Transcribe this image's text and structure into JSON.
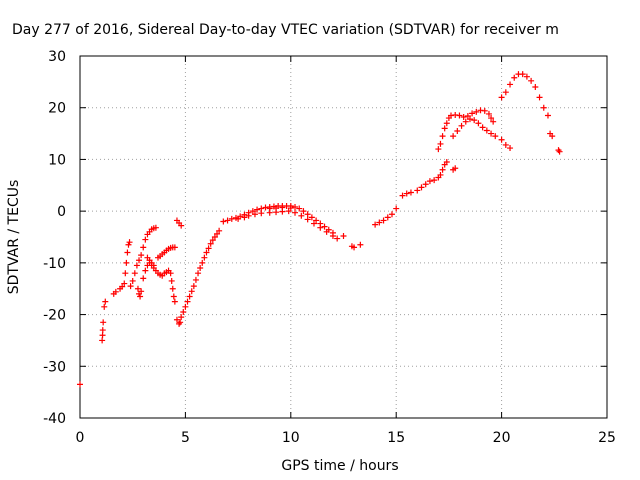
{
  "chart_data": {
    "type": "scatter",
    "title": "Day 277 of 2016, Sidereal Day-to-day VTEC variation (SDTVAR) for receiver m",
    "xlabel": "GPS time / hours",
    "ylabel": "SDTVAR / TECUs",
    "xlim": [
      0,
      25
    ],
    "ylim": [
      -40,
      30
    ],
    "xticks": [
      0,
      5,
      10,
      15,
      20,
      25
    ],
    "yticks": [
      -40,
      -30,
      -20,
      -10,
      0,
      10,
      20,
      30
    ],
    "grid": true,
    "legend": "none",
    "marker": "plus",
    "color": "#ff0000",
    "series": [
      {
        "points": [
          [
            0.0,
            -33.5
          ],
          [
            1.05,
            -25.0
          ],
          [
            1.07,
            -24.0
          ],
          [
            1.08,
            -23.0
          ],
          [
            1.1,
            -21.5
          ],
          [
            1.15,
            -18.5
          ],
          [
            1.2,
            -17.5
          ],
          [
            1.6,
            -16.0
          ],
          [
            1.7,
            -15.6
          ],
          [
            1.9,
            -15.0
          ],
          [
            2.0,
            -14.6
          ],
          [
            2.1,
            -14.0
          ],
          [
            2.15,
            -12.0
          ],
          [
            2.2,
            -10.0
          ],
          [
            2.25,
            -8.0
          ],
          [
            2.3,
            -6.5
          ],
          [
            2.35,
            -6.0
          ],
          [
            2.4,
            -14.5
          ],
          [
            2.5,
            -13.5
          ],
          [
            2.6,
            -12.0
          ],
          [
            2.7,
            -10.5
          ],
          [
            2.8,
            -9.5
          ],
          [
            2.9,
            -8.5
          ],
          [
            3.0,
            -7.0
          ],
          [
            3.1,
            -5.5
          ],
          [
            3.2,
            -4.5
          ],
          [
            3.3,
            -4.0
          ],
          [
            3.4,
            -3.5
          ],
          [
            3.5,
            -3.3
          ],
          [
            3.6,
            -3.2
          ],
          [
            2.75,
            -15.0
          ],
          [
            2.8,
            -16.0
          ],
          [
            2.85,
            -16.5
          ],
          [
            2.9,
            -15.5
          ],
          [
            3.0,
            -13.0
          ],
          [
            3.1,
            -11.5
          ],
          [
            3.2,
            -10.5
          ],
          [
            3.3,
            -10.0
          ],
          [
            3.4,
            -10.5
          ],
          [
            3.5,
            -11.0
          ],
          [
            3.6,
            -11.5
          ],
          [
            3.7,
            -12.0
          ],
          [
            3.8,
            -12.3
          ],
          [
            3.9,
            -12.5
          ],
          [
            4.0,
            -12.0
          ],
          [
            4.1,
            -11.8
          ],
          [
            4.2,
            -11.5
          ],
          [
            4.3,
            -12.0
          ],
          [
            4.35,
            -13.5
          ],
          [
            4.4,
            -15.0
          ],
          [
            4.45,
            -16.5
          ],
          [
            4.5,
            -17.5
          ],
          [
            3.7,
            -9.0
          ],
          [
            3.8,
            -8.7
          ],
          [
            3.9,
            -8.3
          ],
          [
            4.0,
            -8.0
          ],
          [
            4.1,
            -7.6
          ],
          [
            4.2,
            -7.3
          ],
          [
            4.3,
            -7.1
          ],
          [
            4.4,
            -7.0
          ],
          [
            4.5,
            -7.0
          ],
          [
            3.2,
            -9.0
          ],
          [
            3.3,
            -9.5
          ],
          [
            3.4,
            -10.0
          ],
          [
            3.5,
            -10.5
          ],
          [
            4.6,
            -1.8
          ],
          [
            4.7,
            -2.3
          ],
          [
            4.8,
            -2.8
          ],
          [
            4.6,
            -21.0
          ],
          [
            4.7,
            -21.8
          ],
          [
            4.75,
            -21.5
          ],
          [
            4.8,
            -20.5
          ],
          [
            4.9,
            -19.5
          ],
          [
            5.0,
            -18.5
          ],
          [
            5.1,
            -17.5
          ],
          [
            5.2,
            -16.5
          ],
          [
            5.3,
            -15.5
          ],
          [
            5.4,
            -14.5
          ],
          [
            5.5,
            -13.3
          ],
          [
            5.6,
            -12.0
          ],
          [
            5.7,
            -11.0
          ],
          [
            5.8,
            -10.0
          ],
          [
            5.9,
            -9.0
          ],
          [
            6.0,
            -8.0
          ],
          [
            6.1,
            -7.2
          ],
          [
            6.2,
            -6.3
          ],
          [
            6.3,
            -5.6
          ],
          [
            6.4,
            -5.0
          ],
          [
            6.5,
            -4.4
          ],
          [
            6.6,
            -3.8
          ],
          [
            6.8,
            -2.0
          ],
          [
            7.0,
            -1.8
          ],
          [
            7.2,
            -1.5
          ],
          [
            7.4,
            -1.3
          ],
          [
            7.6,
            -1.0
          ],
          [
            7.8,
            -0.7
          ],
          [
            8.0,
            -0.3
          ],
          [
            8.2,
            0.0
          ],
          [
            8.4,
            0.3
          ],
          [
            8.6,
            0.5
          ],
          [
            8.8,
            0.7
          ],
          [
            9.0,
            0.8
          ],
          [
            9.2,
            0.9
          ],
          [
            9.4,
            1.0
          ],
          [
            9.6,
            1.0
          ],
          [
            9.8,
            1.0
          ],
          [
            10.0,
            1.0
          ],
          [
            10.2,
            0.8
          ],
          [
            10.4,
            0.5
          ],
          [
            10.6,
            0.0
          ],
          [
            10.8,
            -0.6
          ],
          [
            11.0,
            -1.2
          ],
          [
            11.2,
            -1.8
          ],
          [
            11.4,
            -2.4
          ],
          [
            11.6,
            -3.0
          ],
          [
            11.8,
            -3.6
          ],
          [
            12.0,
            -4.2
          ],
          [
            7.5,
            -1.5
          ],
          [
            7.8,
            -1.2
          ],
          [
            8.0,
            -0.9
          ],
          [
            8.3,
            -0.6
          ],
          [
            8.6,
            -0.4
          ],
          [
            9.0,
            -0.3
          ],
          [
            9.3,
            -0.2
          ],
          [
            9.6,
            -0.1
          ],
          [
            9.9,
            0.0
          ],
          [
            10.2,
            -0.3
          ],
          [
            10.5,
            -0.9
          ],
          [
            10.8,
            -1.6
          ],
          [
            11.1,
            -2.4
          ],
          [
            11.4,
            -3.2
          ],
          [
            11.7,
            -4.0
          ],
          [
            12.0,
            -4.8
          ],
          [
            12.2,
            -5.3
          ],
          [
            9.0,
            0.5
          ],
          [
            9.3,
            0.6
          ],
          [
            9.6,
            0.7
          ],
          [
            10.0,
            0.6
          ],
          [
            12.5,
            -4.8
          ],
          [
            12.9,
            -6.8
          ],
          [
            13.0,
            -7.0
          ],
          [
            13.3,
            -6.5
          ],
          [
            14.0,
            -2.6
          ],
          [
            14.2,
            -2.2
          ],
          [
            14.4,
            -1.8
          ],
          [
            14.6,
            -1.2
          ],
          [
            14.8,
            -0.6
          ],
          [
            15.0,
            0.5
          ],
          [
            15.3,
            3.0
          ],
          [
            15.5,
            3.4
          ],
          [
            15.7,
            3.6
          ],
          [
            16.0,
            4.0
          ],
          [
            16.2,
            4.6
          ],
          [
            16.4,
            5.2
          ],
          [
            16.6,
            5.8
          ],
          [
            16.8,
            6.0
          ],
          [
            17.0,
            6.5
          ],
          [
            17.1,
            7.0
          ],
          [
            17.2,
            8.0
          ],
          [
            17.3,
            9.0
          ],
          [
            17.4,
            9.5
          ],
          [
            17.0,
            12.0
          ],
          [
            17.1,
            13.0
          ],
          [
            17.2,
            14.5
          ],
          [
            17.3,
            16.0
          ],
          [
            17.4,
            17.0
          ],
          [
            17.5,
            18.0
          ],
          [
            17.6,
            18.5
          ],
          [
            17.8,
            18.6
          ],
          [
            18.0,
            18.5
          ],
          [
            18.2,
            18.2
          ],
          [
            18.4,
            18.4
          ],
          [
            18.6,
            18.9
          ],
          [
            18.8,
            19.2
          ],
          [
            19.0,
            19.5
          ],
          [
            19.2,
            19.4
          ],
          [
            19.4,
            18.8
          ],
          [
            19.5,
            18.0
          ],
          [
            19.6,
            17.3
          ],
          [
            17.7,
            8.0
          ],
          [
            17.8,
            8.3
          ],
          [
            17.7,
            14.5
          ],
          [
            17.9,
            15.5
          ],
          [
            18.1,
            16.5
          ],
          [
            18.3,
            17.3
          ],
          [
            18.5,
            17.8
          ],
          [
            18.7,
            17.6
          ],
          [
            18.9,
            17.0
          ],
          [
            19.1,
            16.2
          ],
          [
            19.3,
            15.6
          ],
          [
            19.5,
            15.0
          ],
          [
            19.7,
            14.5
          ],
          [
            20.0,
            13.8
          ],
          [
            20.2,
            12.8
          ],
          [
            20.4,
            12.2
          ],
          [
            20.0,
            22.0
          ],
          [
            20.2,
            23.0
          ],
          [
            20.4,
            24.5
          ],
          [
            20.6,
            25.8
          ],
          [
            20.8,
            26.5
          ],
          [
            21.0,
            26.5
          ],
          [
            21.2,
            26.0
          ],
          [
            21.4,
            25.2
          ],
          [
            21.6,
            24.0
          ],
          [
            21.8,
            22.0
          ],
          [
            22.0,
            20.0
          ],
          [
            22.2,
            18.5
          ],
          [
            22.3,
            15.0
          ],
          [
            22.4,
            14.5
          ],
          [
            22.7,
            11.8
          ],
          [
            22.75,
            11.5
          ]
        ]
      }
    ]
  }
}
